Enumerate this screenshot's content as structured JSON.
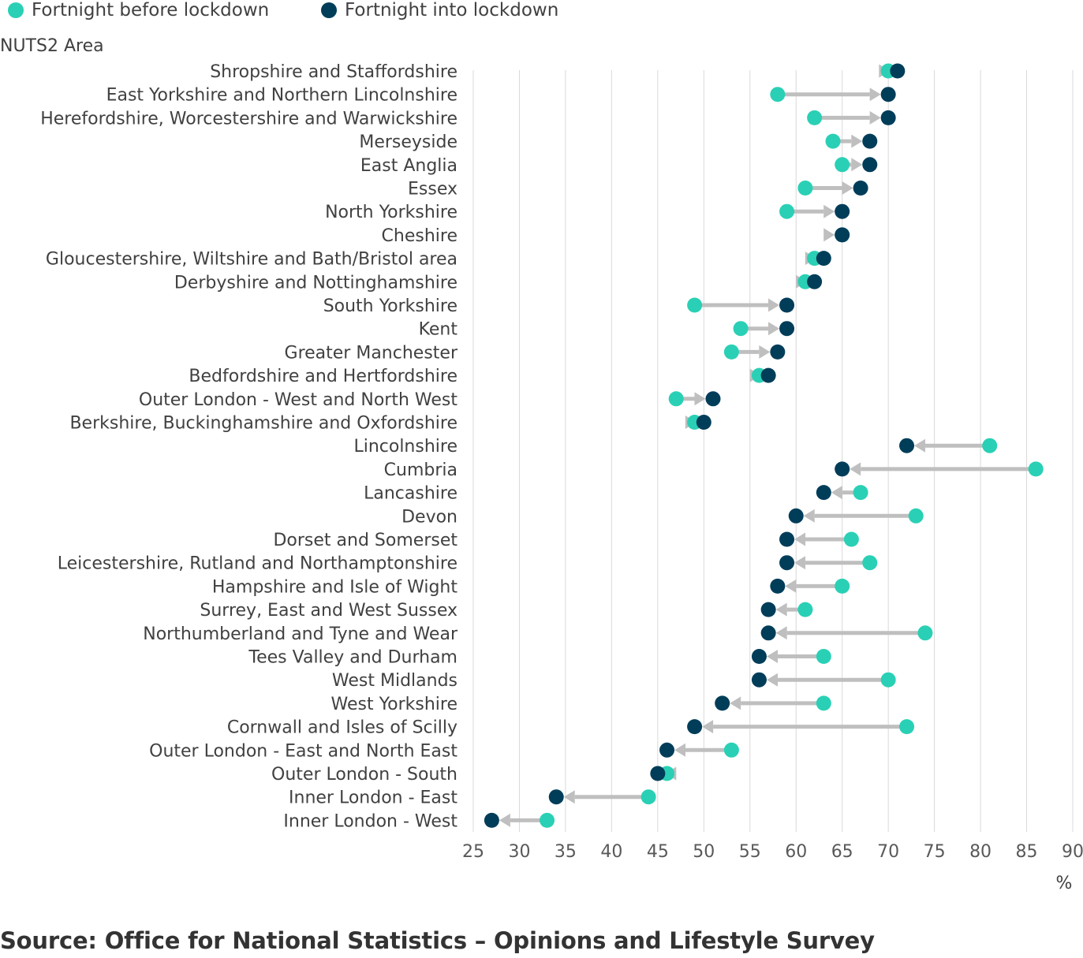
{
  "chart_data": {
    "type": "scatter",
    "style": "dumbbell-arrow",
    "ylabel": "NUTS2 Area",
    "xlabel": "%",
    "xlim": [
      25,
      90
    ],
    "xticks": [
      25,
      30,
      35,
      40,
      45,
      50,
      55,
      60,
      65,
      70,
      75,
      80,
      85,
      90
    ],
    "grid": "vertical",
    "legend_placement": "top-left",
    "series": [
      {
        "name": "Fortnight before lockdown",
        "color": "#2ad0b5"
      },
      {
        "name": "Fortnight into lockdown",
        "color": "#003d59"
      }
    ],
    "arrow_color": "#bfbfbf",
    "categories": [
      "Shropshire and Staffordshire",
      "East Yorkshire and Northern Lincolnshire",
      "Herefordshire, Worcestershire and Warwickshire",
      "Merseyside",
      "East Anglia",
      "Essex",
      "North Yorkshire",
      "Cheshire",
      "Gloucestershire, Wiltshire and Bath/Bristol area",
      "Derbyshire and Nottinghamshire",
      "South Yorkshire",
      "Kent",
      "Greater Manchester",
      "Bedfordshire and Hertfordshire",
      "Outer London - West and North West",
      "Berkshire, Buckinghamshire and Oxfordshire",
      "Lincolnshire",
      "Cumbria",
      "Lancashire",
      "Devon",
      "Dorset and Somerset",
      "Leicestershire, Rutland and Northamptonshire",
      "Hampshire and Isle of Wight",
      "Surrey, East and West Sussex",
      "Northumberland and Tyne and Wear",
      "Tees Valley and Durham",
      "West Midlands",
      "West Yorkshire",
      "Cornwall and Isles of Scilly",
      "Outer London - East and North East",
      "Outer London - South",
      "Inner London - East",
      "Inner London - West"
    ],
    "before": [
      70,
      58,
      62,
      64,
      65,
      61,
      59,
      65,
      62,
      61,
      49,
      54,
      53,
      56,
      47,
      49,
      81,
      86,
      67,
      73,
      66,
      68,
      65,
      61,
      74,
      63,
      70,
      63,
      72,
      53,
      46,
      44,
      33
    ],
    "into": [
      71,
      70,
      70,
      68,
      68,
      67,
      65,
      65,
      63,
      62,
      59,
      59,
      58,
      57,
      51,
      50,
      72,
      65,
      63,
      60,
      59,
      59,
      58,
      57,
      57,
      56,
      56,
      52,
      49,
      46,
      45,
      34,
      27
    ]
  },
  "source_text": "Source: Office for National Statistics – Opinions and Lifestyle Survey"
}
